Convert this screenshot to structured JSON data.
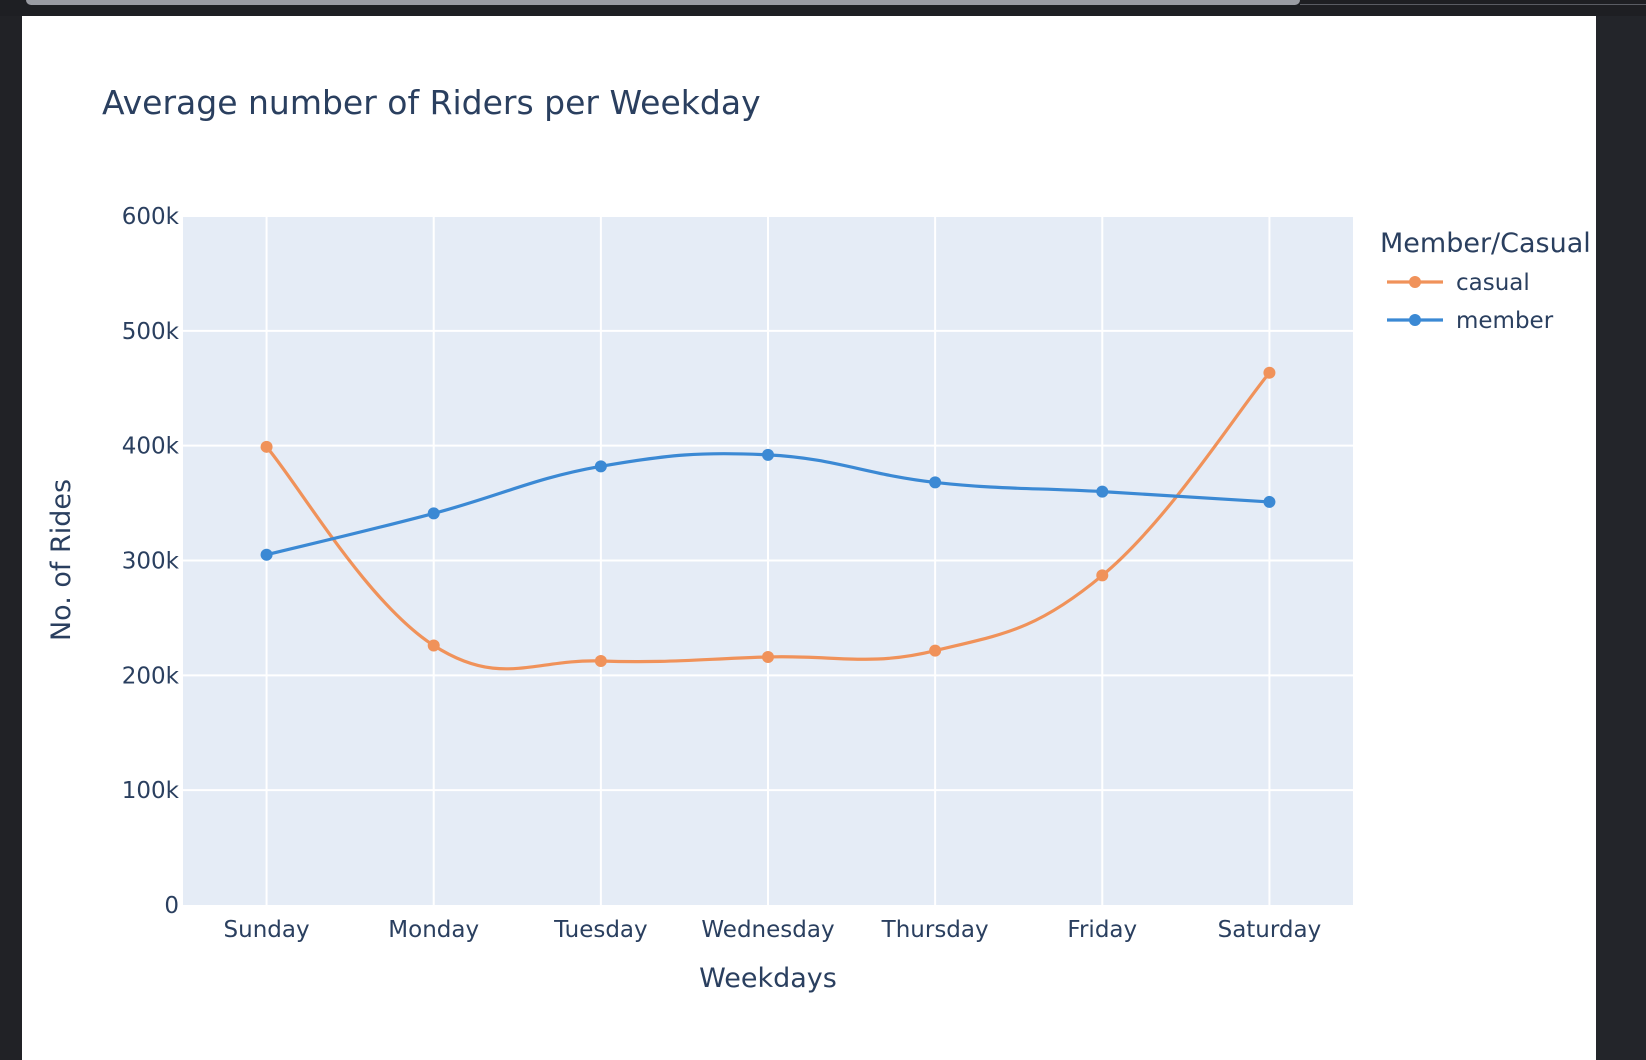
{
  "chart_data": {
    "type": "line",
    "title": "Average number of Riders per Weekday",
    "xlabel": "Weekdays",
    "ylabel": "No. of Rides",
    "categories": [
      "Sunday",
      "Monday",
      "Tuesday",
      "Wednesday",
      "Thursday",
      "Friday",
      "Saturday"
    ],
    "ylim": [
      0,
      600000
    ],
    "y_ticks": [
      0,
      100000,
      200000,
      300000,
      400000,
      500000,
      600000
    ],
    "y_tick_labels": [
      "0",
      "100k",
      "200k",
      "300k",
      "400k",
      "500k",
      "600k"
    ],
    "grid": true,
    "smoothing": "spline",
    "legend": {
      "title": "Member/Casual",
      "placement": "right"
    },
    "series": [
      {
        "name": "casual",
        "color": "#f0925a",
        "values": [
          399000,
          226000,
          212500,
          216000,
          221500,
          287000,
          463500
        ]
      },
      {
        "name": "member",
        "color": "#3b89d4",
        "values": [
          305000,
          341000,
          382000,
          392000,
          368000,
          360000,
          351000
        ]
      }
    ],
    "plot_bg": "#e5ecf6"
  }
}
